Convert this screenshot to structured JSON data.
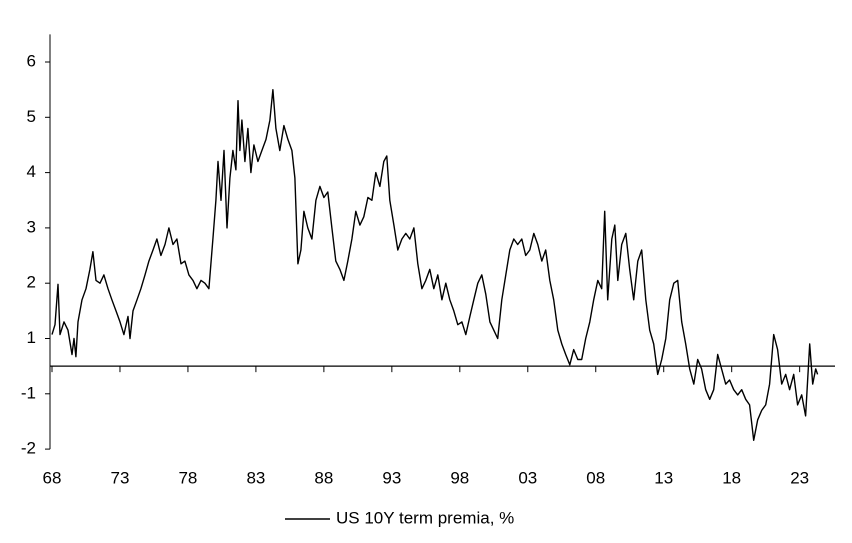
{
  "chart_data": {
    "type": "line",
    "x": [
      1968.0,
      1968.22,
      1968.44,
      1968.59,
      1968.88,
      1969.18,
      1969.47,
      1969.62,
      1969.76,
      1969.91,
      1970.21,
      1970.5,
      1970.79,
      1971.01,
      1971.24,
      1971.53,
      1971.82,
      1972.12,
      1972.41,
      1972.71,
      1973.0,
      1973.29,
      1973.59,
      1973.74,
      1973.96,
      1974.25,
      1974.54,
      1974.84,
      1975.13,
      1975.43,
      1975.72,
      1976.01,
      1976.31,
      1976.6,
      1976.9,
      1977.19,
      1977.49,
      1977.78,
      1978.07,
      1978.37,
      1978.66,
      1978.96,
      1979.25,
      1979.54,
      1979.84,
      1980.06,
      1980.21,
      1980.43,
      1980.65,
      1980.87,
      1981.09,
      1981.31,
      1981.53,
      1981.68,
      1981.82,
      1981.97,
      1982.19,
      1982.41,
      1982.63,
      1982.85,
      1983.15,
      1983.44,
      1983.74,
      1984.03,
      1984.25,
      1984.47,
      1984.76,
      1985.06,
      1985.35,
      1985.65,
      1985.87,
      1986.09,
      1986.31,
      1986.53,
      1986.82,
      1987.12,
      1987.41,
      1987.71,
      1988.0,
      1988.29,
      1988.59,
      1988.88,
      1989.18,
      1989.47,
      1989.76,
      1990.06,
      1990.35,
      1990.65,
      1990.94,
      1991.24,
      1991.53,
      1991.82,
      1992.12,
      1992.41,
      1992.63,
      1992.85,
      1993.15,
      1993.44,
      1993.74,
      1994.03,
      1994.32,
      1994.62,
      1994.91,
      1995.21,
      1995.5,
      1995.79,
      1996.09,
      1996.38,
      1996.68,
      1996.97,
      1997.26,
      1997.56,
      1997.85,
      1998.15,
      1998.44,
      1998.74,
      1999.03,
      1999.32,
      1999.62,
      1999.91,
      2000.21,
      2000.5,
      2000.79,
      2001.09,
      2001.38,
      2001.68,
      2001.97,
      2002.26,
      2002.56,
      2002.85,
      2003.15,
      2003.44,
      2003.74,
      2004.03,
      2004.32,
      2004.62,
      2004.91,
      2005.21,
      2005.5,
      2005.79,
      2006.09,
      2006.38,
      2006.68,
      2006.97,
      2007.26,
      2007.56,
      2007.85,
      2008.15,
      2008.44,
      2008.66,
      2008.88,
      2009.18,
      2009.4,
      2009.62,
      2009.91,
      2010.21,
      2010.5,
      2010.79,
      2011.09,
      2011.38,
      2011.68,
      2011.97,
      2012.26,
      2012.56,
      2012.85,
      2013.15,
      2013.44,
      2013.74,
      2014.03,
      2014.32,
      2014.62,
      2014.91,
      2015.21,
      2015.5,
      2015.79,
      2016.09,
      2016.38,
      2016.68,
      2016.97,
      2017.26,
      2017.56,
      2017.85,
      2018.15,
      2018.44,
      2018.74,
      2019.03,
      2019.32,
      2019.62,
      2019.91,
      2020.21,
      2020.5,
      2020.79,
      2021.09,
      2021.38,
      2021.68,
      2021.97,
      2022.26,
      2022.56,
      2022.85,
      2023.15,
      2023.44,
      2023.74,
      2023.96,
      2024.18,
      2024.32
    ],
    "series": [
      {
        "name": "US 10Y term premia, %",
        "color": "#000000",
        "values": [
          1.07,
          1.25,
          1.98,
          1.07,
          1.3,
          1.15,
          0.42,
          1,
          0.34,
          1.3,
          1.7,
          1.9,
          2.25,
          2.57,
          2.05,
          2,
          2.15,
          1.9,
          1.7,
          1.5,
          1.3,
          1.07,
          1.4,
          1,
          1.5,
          1.7,
          1.9,
          2.15,
          2.4,
          2.6,
          2.8,
          2.5,
          2.7,
          3,
          2.7,
          2.8,
          2.35,
          2.4,
          2.15,
          2.05,
          1.9,
          2.05,
          2,
          1.9,
          2.8,
          3.5,
          4.2,
          3.5,
          4.4,
          3,
          3.9,
          4.4,
          4.05,
          5.3,
          4.4,
          4.95,
          4.2,
          4.8,
          4,
          4.5,
          4.2,
          4.4,
          4.6,
          4.95,
          5.5,
          4.8,
          4.4,
          4.85,
          4.6,
          4.4,
          3.9,
          2.35,
          2.6,
          3.3,
          3,
          2.8,
          3.5,
          3.75,
          3.55,
          3.65,
          3,
          2.4,
          2.25,
          2.05,
          2.4,
          2.8,
          3.3,
          3.05,
          3.2,
          3.55,
          3.5,
          4,
          3.75,
          4.2,
          4.3,
          3.5,
          3.05,
          2.6,
          2.8,
          2.9,
          2.8,
          3,
          2.35,
          1.9,
          2.05,
          2.25,
          1.9,
          2.15,
          1.7,
          2,
          1.7,
          1.5,
          1.25,
          1.3,
          1.07,
          1.4,
          1.7,
          2,
          2.15,
          1.8,
          1.3,
          1.15,
          1,
          1.7,
          2.15,
          2.6,
          2.8,
          2.7,
          2.8,
          2.5,
          2.6,
          2.9,
          2.7,
          2.4,
          2.6,
          2.05,
          1.7,
          1.15,
          0.8,
          0.42,
          0.05,
          0.6,
          0.24,
          0.24,
          1,
          1.3,
          1.7,
          2.05,
          1.9,
          3.3,
          1.7,
          2.8,
          3.05,
          2.05,
          2.7,
          2.9,
          2.25,
          1.7,
          2.4,
          2.6,
          1.7,
          1.15,
          0.8,
          -0.3,
          0.24,
          1,
          1.7,
          2,
          2.05,
          1.3,
          0.8,
          -0.1,
          -0.65,
          0.24,
          -0.1,
          -0.85,
          -1.1,
          -0.85,
          0.42,
          -0.1,
          -0.65,
          -0.5,
          -0.85,
          -1.02,
          -0.85,
          -1.1,
          -1.2,
          -1.84,
          -1.47,
          -1.3,
          -1.2,
          -0.65,
          1.07,
          0.6,
          -0.65,
          -0.3,
          -0.85,
          -0.3,
          -1.2,
          -1.02,
          -1.4,
          0.8,
          -0.65,
          -0.1,
          -0.3
        ]
      }
    ],
    "xlim": [
      1968,
      2025.6
    ],
    "xticks": [
      {
        "value": 1968,
        "label": "68"
      },
      {
        "value": 1973,
        "label": "73"
      },
      {
        "value": 1978,
        "label": "78"
      },
      {
        "value": 1983,
        "label": "83"
      },
      {
        "value": 1988,
        "label": "88"
      },
      {
        "value": 1993,
        "label": "93"
      },
      {
        "value": 1998,
        "label": "98"
      },
      {
        "value": 2003,
        "label": "03"
      },
      {
        "value": 2008,
        "label": "08"
      },
      {
        "value": 2013,
        "label": "13"
      },
      {
        "value": 2018,
        "label": "18"
      },
      {
        "value": 2023,
        "label": "23"
      }
    ],
    "ylim": [
      -2,
      6.5
    ],
    "yticks": [
      6,
      5,
      4,
      3,
      2,
      1,
      -1,
      -2
    ]
  }
}
